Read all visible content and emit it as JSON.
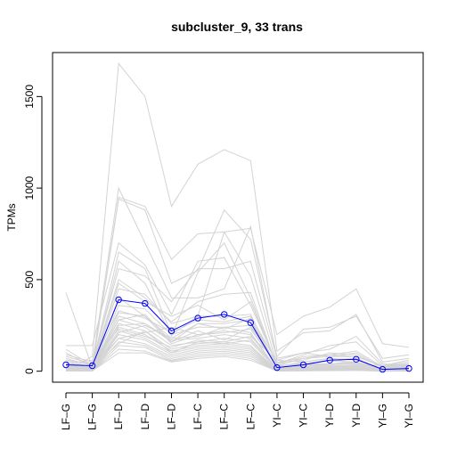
{
  "chart_data": {
    "type": "line",
    "title": "subcluster_9, 33 trans",
    "xlabel": "",
    "ylabel": "TPMs",
    "categories": [
      "LF–G",
      "LF–G",
      "LF–D",
      "LF–D",
      "LF–D",
      "LF–C",
      "LF–C",
      "LF–C",
      "YI–C",
      "YI–C",
      "YI–D",
      "YI–D",
      "YI–G",
      "YI–G"
    ],
    "y_ticks": [
      0,
      500,
      1000,
      1500
    ],
    "ylim": [
      -60,
      1740
    ],
    "grid": false,
    "legend": "none",
    "colors": {
      "background_series": "#d3d3d3",
      "highlight": "#0000ff"
    },
    "highlight_series": {
      "values": [
        35,
        30,
        390,
        370,
        220,
        290,
        310,
        265,
        20,
        35,
        60,
        65,
        10,
        15
      ],
      "marker": "open-circle"
    },
    "series": [
      {
        "values": [
          0,
          80,
          1680,
          1500,
          900,
          1130,
          1210,
          1150,
          110,
          210,
          220,
          310,
          50,
          70
        ]
      },
      {
        "values": [
          10,
          15,
          950,
          900,
          610,
          750,
          760,
          780,
          200,
          300,
          350,
          450,
          150,
          130
        ]
      },
      {
        "values": [
          430,
          20,
          940,
          880,
          480,
          550,
          880,
          720,
          80,
          230,
          240,
          300,
          70,
          90
        ]
      },
      {
        "values": [
          60,
          40,
          1000,
          700,
          400,
          400,
          450,
          790,
          60,
          100,
          120,
          190,
          40,
          30
        ]
      },
      {
        "values": [
          140,
          140,
          700,
          580,
          310,
          600,
          620,
          360,
          40,
          90,
          140,
          160,
          30,
          60
        ]
      },
      {
        "values": [
          120,
          30,
          650,
          560,
          200,
          300,
          760,
          520,
          40,
          80,
          90,
          110,
          25,
          40
        ]
      },
      {
        "values": [
          100,
          25,
          600,
          480,
          190,
          540,
          700,
          400,
          30,
          70,
          80,
          100,
          20,
          35
        ]
      },
      {
        "values": [
          80,
          40,
          560,
          520,
          380,
          560,
          560,
          600,
          70,
          100,
          80,
          80,
          30,
          50
        ]
      },
      {
        "values": [
          70,
          30,
          500,
          400,
          270,
          380,
          420,
          430,
          25,
          50,
          70,
          60,
          15,
          25
        ]
      },
      {
        "values": [
          60,
          20,
          480,
          380,
          300,
          360,
          280,
          380,
          30,
          40,
          55,
          50,
          10,
          20
        ]
      },
      {
        "values": [
          50,
          15,
          450,
          420,
          260,
          300,
          300,
          310,
          20,
          40,
          40,
          40,
          10,
          20
        ]
      },
      {
        "values": [
          40,
          10,
          400,
          300,
          180,
          260,
          260,
          280,
          15,
          30,
          35,
          45,
          8,
          15
        ]
      },
      {
        "values": [
          30,
          10,
          360,
          340,
          200,
          240,
          240,
          250,
          20,
          35,
          40,
          50,
          12,
          20
        ]
      },
      {
        "values": [
          25,
          8,
          320,
          300,
          150,
          200,
          220,
          200,
          10,
          25,
          30,
          35,
          5,
          10
        ]
      },
      {
        "values": [
          20,
          6,
          300,
          260,
          170,
          180,
          200,
          180,
          12,
          20,
          25,
          30,
          8,
          12
        ]
      },
      {
        "values": [
          15,
          5,
          280,
          240,
          140,
          160,
          180,
          160,
          8,
          15,
          20,
          25,
          5,
          8
        ]
      },
      {
        "values": [
          10,
          5,
          260,
          220,
          120,
          150,
          160,
          140,
          5,
          10,
          18,
          20,
          4,
          6
        ]
      },
      {
        "values": [
          8,
          4,
          240,
          200,
          110,
          140,
          150,
          130,
          5,
          10,
          15,
          18,
          3,
          5
        ]
      },
      {
        "values": [
          6,
          3,
          220,
          180,
          100,
          130,
          140,
          120,
          4,
          8,
          12,
          15,
          2,
          4
        ]
      },
      {
        "values": [
          5,
          3,
          200,
          170,
          90,
          120,
          130,
          110,
          3,
          6,
          10,
          12,
          2,
          3
        ]
      },
      {
        "values": [
          4,
          2,
          180,
          150,
          80,
          110,
          120,
          100,
          3,
          5,
          8,
          10,
          1,
          3
        ]
      },
      {
        "values": [
          3,
          2,
          160,
          140,
          70,
          100,
          110,
          90,
          2,
          4,
          6,
          8,
          1,
          2
        ]
      },
      {
        "values": [
          3,
          1,
          140,
          130,
          60,
          90,
          100,
          80,
          2,
          3,
          5,
          6,
          1,
          2
        ]
      },
      {
        "values": [
          2,
          1,
          120,
          110,
          55,
          80,
          90,
          70,
          1,
          3,
          4,
          5,
          1,
          1
        ]
      },
      {
        "values": [
          2,
          1,
          100,
          100,
          50,
          70,
          80,
          60,
          1,
          2,
          3,
          4,
          0,
          1
        ]
      },
      {
        "values": [
          40,
          60,
          230,
          190,
          130,
          170,
          160,
          190,
          60,
          50,
          70,
          40,
          30,
          40
        ]
      },
      {
        "values": [
          20,
          30,
          250,
          260,
          160,
          220,
          170,
          240,
          40,
          60,
          100,
          90,
          20,
          30
        ]
      },
      {
        "values": [
          30,
          20,
          180,
          210,
          240,
          200,
          210,
          230,
          30,
          40,
          60,
          70,
          10,
          15
        ]
      },
      {
        "values": [
          90,
          50,
          330,
          290,
          210,
          280,
          270,
          300,
          50,
          70,
          90,
          80,
          25,
          35
        ]
      },
      {
        "values": [
          50,
          10,
          280,
          310,
          160,
          260,
          230,
          290,
          20,
          30,
          40,
          50,
          10,
          18
        ]
      },
      {
        "values": [
          15,
          20,
          150,
          220,
          100,
          160,
          150,
          170,
          15,
          20,
          25,
          30,
          8,
          10
        ]
      },
      {
        "values": [
          5,
          5,
          210,
          250,
          180,
          190,
          240,
          210,
          10,
          15,
          20,
          25,
          5,
          8
        ]
      }
    ]
  }
}
